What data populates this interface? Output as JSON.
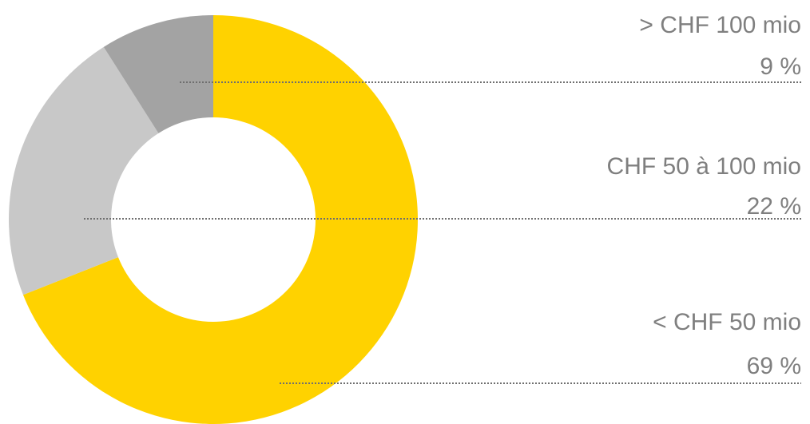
{
  "chart_data": {
    "type": "donut",
    "categories": [
      "< CHF 50 mio",
      "CHF 50 à 100 mio",
      "> CHF 100 mio"
    ],
    "values": [
      69,
      22,
      9
    ],
    "value_labels": [
      "69 %",
      "22 %",
      "9 %"
    ],
    "colors": [
      "#ffd200",
      "#c8c8c8",
      "#a3a3a3"
    ]
  }
}
